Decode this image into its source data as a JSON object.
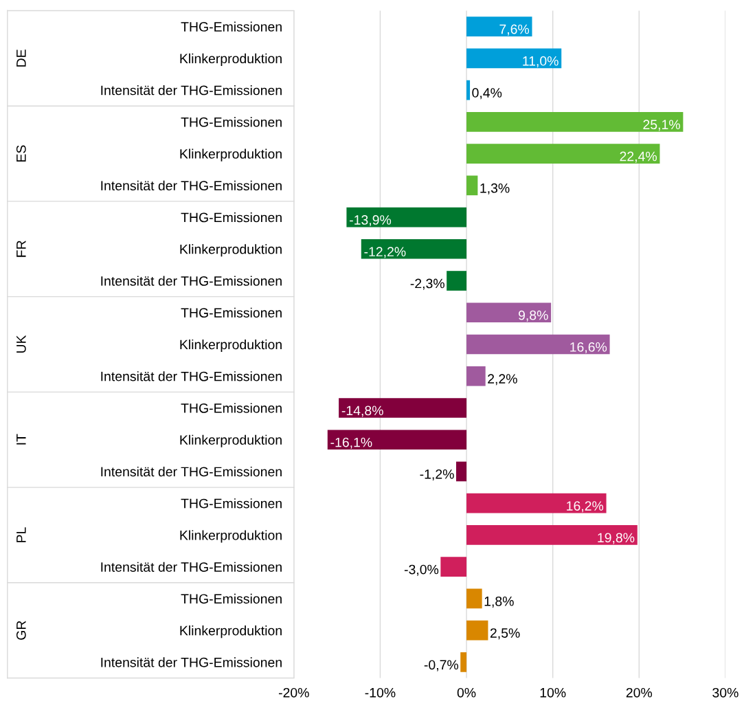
{
  "chart_data": {
    "type": "bar",
    "orientation": "horizontal",
    "categories": [
      "THG-Emissionen",
      "Klinkerproduktion",
      "Intensität der THG-Emissionen",
      "THG-Emissionen",
      "Klinkerproduktion",
      "Intensität der THG-Emissionen",
      "THG-Emissionen",
      "Klinkerproduktion",
      "Intensität der THG-Emissionen",
      "THG-Emissionen",
      "Klinkerproduktion",
      "Intensität der THG-Emissionen",
      "THG-Emissionen",
      "Klinkerproduktion",
      "Intensität der THG-Emissionen",
      "THG-Emissionen",
      "Klinkerproduktion",
      "Intensität der THG-Emissionen",
      "THG-Emissionen",
      "Klinkerproduktion",
      "Intensität der THG-Emissionen"
    ],
    "values": [
      7.6,
      11.0,
      0.4,
      25.1,
      22.4,
      1.3,
      -13.9,
      -12.2,
      -2.3,
      9.8,
      16.6,
      2.2,
      -14.8,
      -16.1,
      -1.2,
      16.2,
      19.8,
      -3.0,
      1.8,
      2.5,
      -0.7
    ],
    "value_labels": [
      "7,6%",
      "11,0%",
      "0,4%",
      "25,1%",
      "22,4%",
      "1,3%",
      "-13,9%",
      "-12,2%",
      "-2,3%",
      "9,8%",
      "16,6%",
      "2,2%",
      "-14,8%",
      "-16,1%",
      "-1,2%",
      "16,2%",
      "19,8%",
      "-3,0%",
      "1,8%",
      "2,5%",
      "-0,7%"
    ],
    "colors": [
      "#009fda",
      "#009fda",
      "#009fda",
      "#62bb35",
      "#62bb35",
      "#62bb35",
      "#00782f",
      "#00782f",
      "#00782f",
      "#a05a9e",
      "#a05a9e",
      "#a05a9e",
      "#82003c",
      "#82003c",
      "#82003c",
      "#d01f5c",
      "#d01f5c",
      "#d01f5c",
      "#d98700",
      "#d98700",
      "#d98700"
    ],
    "annotations": [
      "DE",
      "ES",
      "FR",
      "UK",
      "IT",
      "PL",
      "GR"
    ],
    "xlim": [
      -20,
      30
    ],
    "xticks": [
      {
        "value": -20,
        "label": "-20%"
      },
      {
        "value": -10,
        "label": "-10%"
      },
      {
        "value": 0,
        "label": "0%"
      },
      {
        "value": 10,
        "label": "10%"
      },
      {
        "value": 20,
        "label": "20%"
      },
      {
        "value": 30,
        "label": "30%"
      }
    ],
    "grid": "x",
    "legend": false
  }
}
